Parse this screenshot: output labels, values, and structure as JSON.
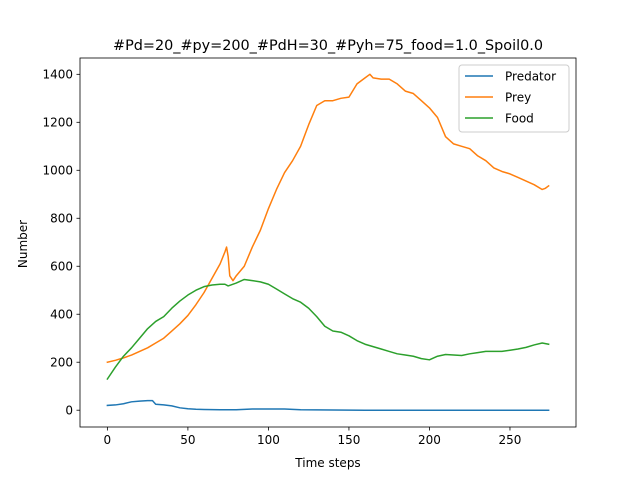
{
  "chart_data": {
    "type": "line",
    "title": "#Pd=20_#py=200_#PdH=30_#Pyh=75_food=1.0_Spoil0.0",
    "xlabel": "Time steps",
    "ylabel": "Number",
    "xlim": [
      -17,
      291
    ],
    "ylim": [
      -70,
      1468
    ],
    "xticks": [
      0,
      50,
      100,
      150,
      200,
      250
    ],
    "yticks": [
      0,
      200,
      400,
      600,
      800,
      1000,
      1200,
      1400
    ],
    "grid": false,
    "legend_position": "upper right",
    "series": [
      {
        "name": "Predator",
        "color": "#1f77b4",
        "points": [
          [
            0,
            20
          ],
          [
            5,
            22
          ],
          [
            10,
            27
          ],
          [
            15,
            35
          ],
          [
            20,
            38
          ],
          [
            25,
            40
          ],
          [
            28,
            40
          ],
          [
            30,
            25
          ],
          [
            35,
            22
          ],
          [
            40,
            18
          ],
          [
            45,
            10
          ],
          [
            50,
            6
          ],
          [
            55,
            4
          ],
          [
            60,
            3
          ],
          [
            70,
            2
          ],
          [
            80,
            2
          ],
          [
            90,
            5
          ],
          [
            100,
            5
          ],
          [
            110,
            5
          ],
          [
            120,
            2
          ],
          [
            140,
            1
          ],
          [
            160,
            0
          ],
          [
            200,
            0
          ],
          [
            250,
            0
          ],
          [
            274,
            0
          ]
        ]
      },
      {
        "name": "Prey",
        "color": "#ff7f0e",
        "points": [
          [
            0,
            200
          ],
          [
            5,
            208
          ],
          [
            10,
            218
          ],
          [
            15,
            230
          ],
          [
            20,
            245
          ],
          [
            25,
            260
          ],
          [
            30,
            280
          ],
          [
            35,
            300
          ],
          [
            40,
            330
          ],
          [
            45,
            360
          ],
          [
            50,
            395
          ],
          [
            55,
            440
          ],
          [
            60,
            490
          ],
          [
            65,
            550
          ],
          [
            70,
            610
          ],
          [
            73,
            660
          ],
          [
            74,
            680
          ],
          [
            75,
            640
          ],
          [
            76,
            560
          ],
          [
            78,
            540
          ],
          [
            80,
            560
          ],
          [
            85,
            600
          ],
          [
            90,
            680
          ],
          [
            95,
            750
          ],
          [
            100,
            840
          ],
          [
            105,
            920
          ],
          [
            110,
            990
          ],
          [
            115,
            1040
          ],
          [
            120,
            1100
          ],
          [
            125,
            1190
          ],
          [
            130,
            1270
          ],
          [
            135,
            1290
          ],
          [
            140,
            1290
          ],
          [
            145,
            1300
          ],
          [
            150,
            1305
          ],
          [
            155,
            1360
          ],
          [
            160,
            1385
          ],
          [
            163,
            1400
          ],
          [
            165,
            1385
          ],
          [
            170,
            1380
          ],
          [
            175,
            1380
          ],
          [
            180,
            1360
          ],
          [
            185,
            1330
          ],
          [
            190,
            1320
          ],
          [
            195,
            1290
          ],
          [
            200,
            1260
          ],
          [
            205,
            1220
          ],
          [
            210,
            1140
          ],
          [
            215,
            1110
          ],
          [
            220,
            1100
          ],
          [
            225,
            1090
          ],
          [
            230,
            1060
          ],
          [
            235,
            1040
          ],
          [
            240,
            1010
          ],
          [
            245,
            995
          ],
          [
            250,
            985
          ],
          [
            255,
            970
          ],
          [
            260,
            955
          ],
          [
            265,
            940
          ],
          [
            270,
            920
          ],
          [
            272,
            925
          ],
          [
            274,
            935
          ]
        ]
      },
      {
        "name": "Food",
        "color": "#2ca02c",
        "points": [
          [
            0,
            130
          ],
          [
            5,
            180
          ],
          [
            10,
            225
          ],
          [
            15,
            260
          ],
          [
            20,
            300
          ],
          [
            25,
            340
          ],
          [
            30,
            370
          ],
          [
            35,
            390
          ],
          [
            40,
            425
          ],
          [
            45,
            455
          ],
          [
            50,
            480
          ],
          [
            55,
            500
          ],
          [
            60,
            515
          ],
          [
            65,
            522
          ],
          [
            70,
            525
          ],
          [
            73,
            525
          ],
          [
            75,
            518
          ],
          [
            80,
            530
          ],
          [
            85,
            545
          ],
          [
            90,
            540
          ],
          [
            95,
            535
          ],
          [
            100,
            525
          ],
          [
            105,
            505
          ],
          [
            110,
            485
          ],
          [
            115,
            465
          ],
          [
            120,
            450
          ],
          [
            125,
            425
          ],
          [
            130,
            390
          ],
          [
            135,
            350
          ],
          [
            140,
            330
          ],
          [
            145,
            325
          ],
          [
            150,
            310
          ],
          [
            155,
            290
          ],
          [
            160,
            275
          ],
          [
            165,
            265
          ],
          [
            170,
            255
          ],
          [
            175,
            245
          ],
          [
            180,
            235
          ],
          [
            185,
            230
          ],
          [
            190,
            225
          ],
          [
            195,
            215
          ],
          [
            200,
            210
          ],
          [
            205,
            225
          ],
          [
            210,
            232
          ],
          [
            215,
            230
          ],
          [
            220,
            228
          ],
          [
            225,
            235
          ],
          [
            230,
            240
          ],
          [
            235,
            245
          ],
          [
            240,
            245
          ],
          [
            245,
            245
          ],
          [
            250,
            250
          ],
          [
            255,
            255
          ],
          [
            260,
            262
          ],
          [
            265,
            272
          ],
          [
            270,
            280
          ],
          [
            274,
            275
          ]
        ]
      }
    ]
  }
}
